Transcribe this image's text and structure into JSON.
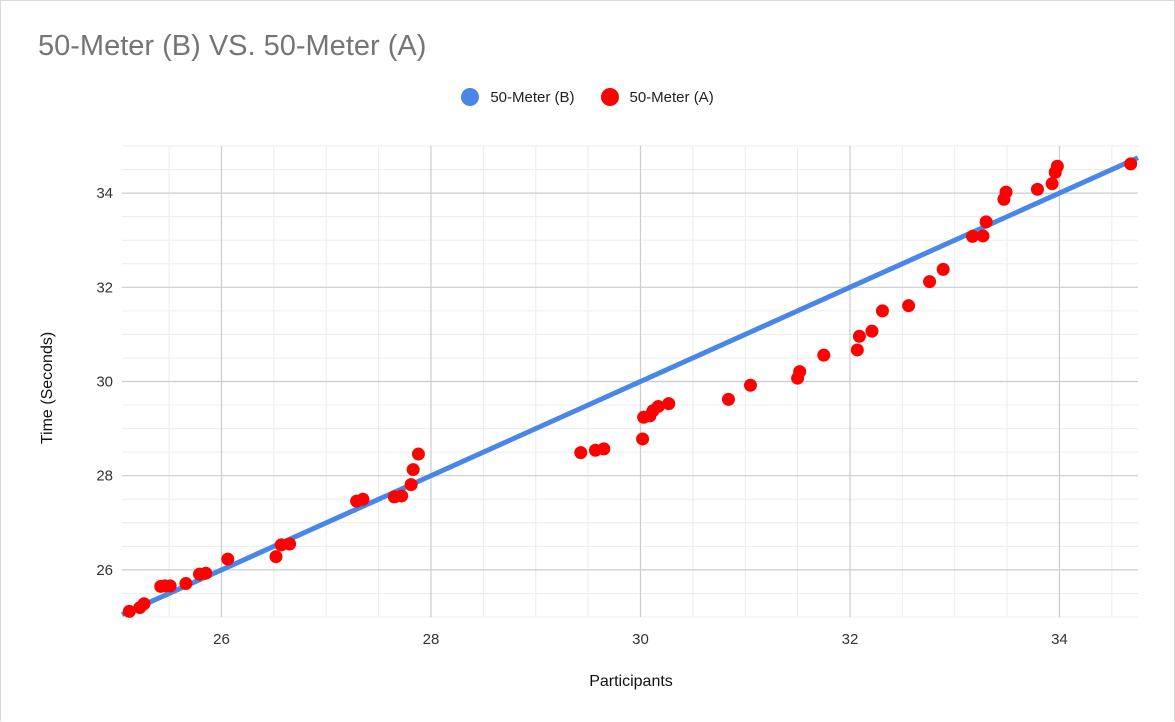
{
  "chart_data": {
    "type": "scatter",
    "title": "50-Meter (B) VS. 50-Meter (A)",
    "xlabel": "Participants",
    "ylabel": "Time (Seconds)",
    "xlim": [
      25.05,
      34.75
    ],
    "ylim": [
      25.0,
      35.0
    ],
    "x_ticks": [
      "26",
      "28",
      "30",
      "32",
      "34"
    ],
    "y_ticks": [
      "26",
      "28",
      "30",
      "32",
      "34"
    ],
    "grid": true,
    "legend_position": "top",
    "series": [
      {
        "name": "50-Meter (B)",
        "color": "#4a86e8",
        "style": "line",
        "x": [
          25.05,
          34.75
        ],
        "y": [
          25.05,
          34.75
        ]
      },
      {
        "name": "50-Meter (A)",
        "color": "#ff0000",
        "style": "points",
        "x": [
          25.12,
          25.22,
          25.26,
          25.42,
          25.46,
          25.51,
          25.66,
          25.79,
          25.85,
          26.06,
          26.52,
          26.57,
          26.65,
          27.29,
          27.35,
          27.65,
          27.72,
          27.81,
          27.83,
          27.88,
          29.43,
          29.57,
          29.65,
          30.02,
          30.03,
          30.09,
          30.12,
          30.17,
          30.27,
          30.84,
          31.05,
          31.5,
          31.52,
          31.75,
          32.07,
          32.09,
          32.21,
          32.31,
          32.56,
          32.76,
          32.89,
          33.17,
          33.27,
          33.3,
          33.47,
          33.49,
          33.79,
          33.93,
          33.96,
          33.98,
          34.68
        ],
        "y": [
          25.12,
          25.2,
          25.28,
          25.65,
          25.66,
          25.66,
          25.71,
          25.91,
          25.93,
          26.23,
          26.28,
          26.53,
          26.55,
          27.46,
          27.5,
          27.55,
          27.57,
          27.81,
          28.13,
          28.46,
          28.49,
          28.54,
          28.57,
          28.78,
          29.24,
          29.27,
          29.38,
          29.47,
          29.53,
          29.62,
          29.92,
          30.07,
          30.21,
          30.56,
          30.67,
          30.96,
          31.07,
          31.5,
          31.61,
          32.12,
          32.38,
          33.08,
          33.09,
          33.39,
          33.87,
          34.02,
          34.08,
          34.2,
          34.44,
          34.57,
          34.62
        ]
      }
    ]
  }
}
